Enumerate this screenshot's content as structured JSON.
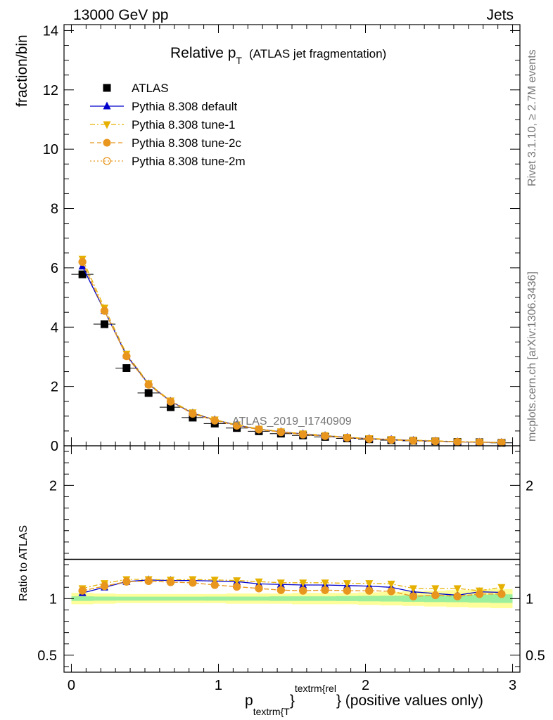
{
  "header": {
    "left": "13000 GeV pp",
    "right": "Jets"
  },
  "side_labels": {
    "rivet": "Rivet 3.1.10, ≥ 2.7M events",
    "mcplots": "mcplots.cern.ch [arXiv:1306.3436]"
  },
  "watermark": "ATLAS_2019_I1740909",
  "chart_data": [
    {
      "type": "line",
      "title": {
        "main": "Relative p",
        "sub": "T",
        "rest": "(ATLAS jet fragmentation)"
      },
      "ylabel": "fraction/bin",
      "xlim": [
        -0.05,
        3.05
      ],
      "ylim": [
        0,
        14.2
      ],
      "y_ticks": [
        0,
        2,
        4,
        6,
        8,
        10,
        12,
        14
      ],
      "x": [
        0.075,
        0.225,
        0.375,
        0.525,
        0.675,
        0.825,
        0.975,
        1.125,
        1.275,
        1.425,
        1.575,
        1.725,
        1.875,
        2.025,
        2.175,
        2.325,
        2.475,
        2.625,
        2.775,
        2.925
      ],
      "legend_position": "top-left",
      "series": [
        {
          "name": "ATLAS",
          "color": "#000000",
          "marker": "square",
          "values": [
            5.78,
            4.1,
            2.62,
            1.78,
            1.3,
            0.95,
            0.75,
            0.6,
            0.49,
            0.41,
            0.35,
            0.3,
            0.25,
            0.22,
            0.19,
            0.17,
            0.15,
            0.13,
            0.12,
            0.1
          ]
        },
        {
          "name": "Pythia 8.308 default",
          "color": "#0000cc",
          "marker": "triangle-up",
          "line": "solid",
          "values": [
            6.05,
            4.55,
            3.05,
            2.08,
            1.5,
            1.1,
            0.87,
            0.7,
            0.56,
            0.47,
            0.4,
            0.34,
            0.28,
            0.24,
            0.21,
            0.18,
            0.16,
            0.13,
            0.12,
            0.11
          ]
        },
        {
          "name": "Pythia 8.308 tune-1",
          "color": "#e6b000",
          "marker": "triangle-down",
          "line": "dashdot",
          "values": [
            6.3,
            4.65,
            3.1,
            2.1,
            1.52,
            1.12,
            0.88,
            0.71,
            0.57,
            0.48,
            0.41,
            0.35,
            0.29,
            0.25,
            0.22,
            0.19,
            0.17,
            0.14,
            0.13,
            0.11
          ]
        },
        {
          "name": "Pythia 8.308 tune-2c",
          "color": "#e8961e",
          "marker": "circle",
          "line": "dashed",
          "values": [
            6.2,
            4.55,
            3.02,
            2.06,
            1.49,
            1.08,
            0.85,
            0.68,
            0.55,
            0.46,
            0.38,
            0.33,
            0.27,
            0.23,
            0.2,
            0.17,
            0.15,
            0.13,
            0.12,
            0.11
          ]
        },
        {
          "name": "Pythia 8.308 tune-2m",
          "color": "#e8961e",
          "marker": "open-circle",
          "line": "dotted",
          "values": [
            6.2,
            4.55,
            3.02,
            2.06,
            1.49,
            1.08,
            0.85,
            0.68,
            0.55,
            0.46,
            0.38,
            0.33,
            0.27,
            0.23,
            0.2,
            0.17,
            0.15,
            0.13,
            0.12,
            0.11
          ]
        }
      ]
    },
    {
      "type": "line",
      "ylabel": "Ratio to ATLAS",
      "xlabel": {
        "main": "p",
        "sub": "textrm{T",
        "sup": "textrm{rel",
        "close": "}",
        "rest": "} (positive values only)"
      },
      "xlim": [
        -0.05,
        3.05
      ],
      "ylim": [
        0.35,
        2.35
      ],
      "y_ticks": [
        0.5,
        1,
        2
      ],
      "y_ticklabels": [
        "0.5",
        "1",
        "2"
      ],
      "x_ticks": [
        0,
        1,
        2,
        3
      ],
      "x_ticklabels": [
        "0",
        "1",
        "2",
        "3"
      ],
      "x": [
        0.075,
        0.225,
        0.375,
        0.525,
        0.675,
        0.825,
        0.975,
        1.125,
        1.275,
        1.425,
        1.575,
        1.725,
        1.875,
        2.025,
        2.175,
        2.325,
        2.475,
        2.625,
        2.775,
        2.925
      ],
      "band_yellow_half": [
        0.05,
        0.045,
        0.04,
        0.04,
        0.04,
        0.04,
        0.04,
        0.045,
        0.045,
        0.045,
        0.05,
        0.05,
        0.05,
        0.055,
        0.06,
        0.065,
        0.07,
        0.075,
        0.08,
        0.085
      ],
      "band_green_half": [
        0.02,
        0.018,
        0.017,
        0.017,
        0.017,
        0.017,
        0.018,
        0.018,
        0.018,
        0.02,
        0.02,
        0.02,
        0.022,
        0.024,
        0.026,
        0.028,
        0.03,
        0.032,
        0.035,
        0.038
      ],
      "series": [
        {
          "name": "Pythia 8.308 default",
          "color": "#0000cc",
          "marker": "triangle-up",
          "line": "solid",
          "values": [
            1.05,
            1.1,
            1.15,
            1.165,
            1.16,
            1.16,
            1.155,
            1.15,
            1.13,
            1.125,
            1.12,
            1.12,
            1.115,
            1.11,
            1.1,
            1.06,
            1.045,
            1.03,
            1.06,
            1.055
          ]
        },
        {
          "name": "Pythia 8.308 tune-1",
          "color": "#e6b000",
          "marker": "triangle-down",
          "line": "dashdot",
          "values": [
            1.09,
            1.135,
            1.17,
            1.17,
            1.165,
            1.17,
            1.165,
            1.16,
            1.15,
            1.14,
            1.14,
            1.14,
            1.135,
            1.135,
            1.13,
            1.09,
            1.09,
            1.09,
            1.07,
            1.1
          ]
        },
        {
          "name": "Pythia 8.308 tune-2c",
          "color": "#e8961e",
          "marker": "circle",
          "line": "dashed",
          "values": [
            1.07,
            1.11,
            1.15,
            1.155,
            1.145,
            1.14,
            1.12,
            1.105,
            1.09,
            1.075,
            1.07,
            1.075,
            1.07,
            1.07,
            1.065,
            1.02,
            1.03,
            1.02,
            1.04,
            1.04
          ]
        },
        {
          "name": "Pythia 8.308 tune-2m",
          "color": "#e8961e",
          "marker": "open-circle",
          "line": "dotted",
          "values": [
            1.07,
            1.11,
            1.15,
            1.155,
            1.145,
            1.14,
            1.12,
            1.105,
            1.09,
            1.075,
            1.07,
            1.075,
            1.07,
            1.07,
            1.065,
            1.02,
            1.03,
            1.02,
            1.04,
            1.04
          ]
        }
      ]
    }
  ]
}
